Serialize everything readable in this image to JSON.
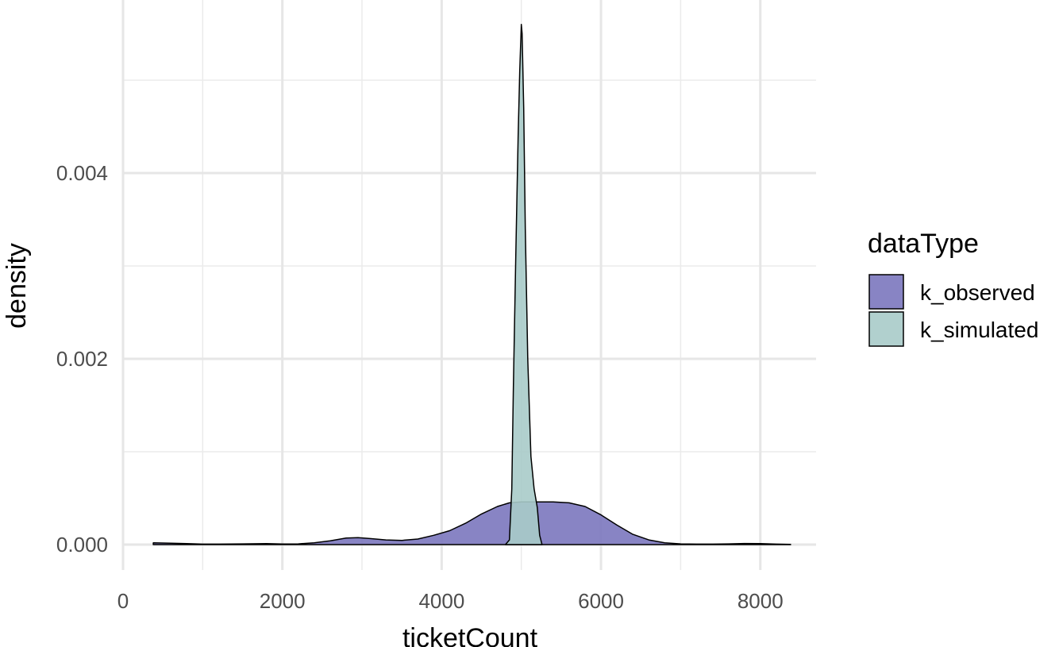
{
  "chart_data": {
    "type": "area",
    "subtype": "density",
    "title": "",
    "xlabel": "ticketCount",
    "ylabel": "density",
    "xlim": [
      0,
      8700
    ],
    "ylim": [
      -0.00025,
      0.0058
    ],
    "x_ticks": [
      0,
      2000,
      4000,
      6000,
      8000
    ],
    "x_tick_labels": [
      "0",
      "2000",
      "4000",
      "6000",
      "8000"
    ],
    "y_ticks": [
      0.0,
      0.002,
      0.004
    ],
    "y_tick_labels": [
      "0.000",
      "0.002",
      "0.004"
    ],
    "grid": true,
    "legend": {
      "title": "dataType",
      "position": "right"
    },
    "series": [
      {
        "name": "k_observed",
        "color": "#7b77be",
        "x": [
          380,
          600,
          800,
          1000,
          1200,
          1500,
          1800,
          2000,
          2200,
          2400,
          2600,
          2800,
          2950,
          3100,
          3300,
          3500,
          3700,
          3900,
          4100,
          4300,
          4500,
          4700,
          4850,
          5000,
          5200,
          5400,
          5600,
          5800,
          6000,
          6200,
          6400,
          6600,
          6800,
          7000,
          7200,
          7400,
          7600,
          7800,
          8000,
          8200,
          8380
        ],
        "values": [
          2e-05,
          1.5e-05,
          1e-05,
          5e-06,
          5e-06,
          8e-06,
          1e-05,
          7e-06,
          8e-06,
          2e-05,
          4e-05,
          7e-05,
          7.5e-05,
          6.5e-05,
          5e-05,
          4.5e-05,
          6e-05,
          0.0001,
          0.00015,
          0.00023,
          0.00033,
          0.00041,
          0.00045,
          0.00046,
          0.00046,
          0.00046,
          0.00045,
          0.00041,
          0.00032,
          0.00021,
          0.00011,
          5e-05,
          2e-05,
          8e-06,
          5e-06,
          5e-06,
          8e-06,
          1.2e-05,
          1e-05,
          5e-06,
          2e-06
        ]
      },
      {
        "name": "k_simulated",
        "color": "#a9cbc9",
        "x": [
          4800,
          4850,
          4880,
          4900,
          4930,
          4960,
          4980,
          5000,
          5010,
          5030,
          5050,
          5080,
          5120,
          5160,
          5200,
          5230,
          5260
        ],
        "values": [
          0.0,
          5e-05,
          0.0006,
          0.0017,
          0.0031,
          0.0044,
          0.0051,
          0.0056,
          0.0055,
          0.0047,
          0.0034,
          0.002,
          0.00095,
          0.0006,
          0.0004,
          0.0001,
          0.0
        ]
      }
    ]
  }
}
